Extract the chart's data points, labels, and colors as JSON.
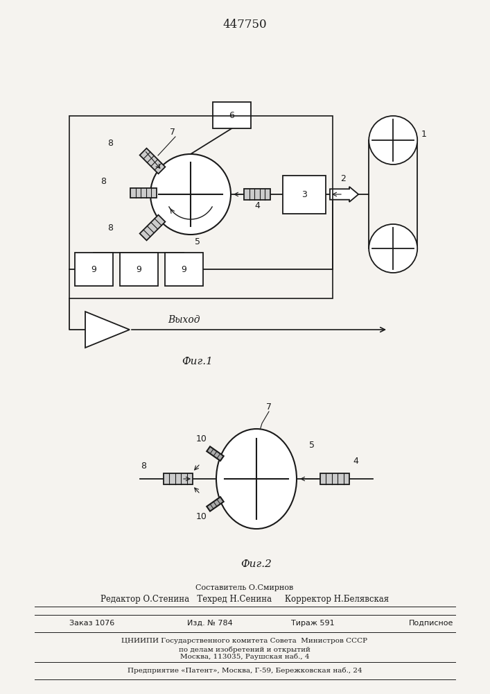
{
  "title": "447750",
  "fig1_label": "Фиг.1",
  "fig2_label": "Фиг.2",
  "bg_color": "#f5f3ef",
  "line_color": "#1a1a1a",
  "vyhod_label": "Выход",
  "footer_sostavitel": "Составитель О.Смирнов",
  "footer_editor": "Редактор О.Стенина",
  "footer_tehred": "Техред Н.Сенина",
  "footer_korrektor": "Корректор Н.Белявская",
  "footer_zakaz": "Заказ 1076",
  "footer_izd": "Изд. № 784",
  "footer_tirazh": "Тираж 591",
  "footer_podpisnoe": "Подписное",
  "footer_cniip1": "ЦНИИПИ Государственного комитета Совета  Министров СССР",
  "footer_cniip2": "по делам изобретений и открытий",
  "footer_cniip3": "Москва, 113035, Раушская наб., 4",
  "footer_predpr": "Предприятие «Патент», Москва, Г-59, Бережковская наб., 24"
}
